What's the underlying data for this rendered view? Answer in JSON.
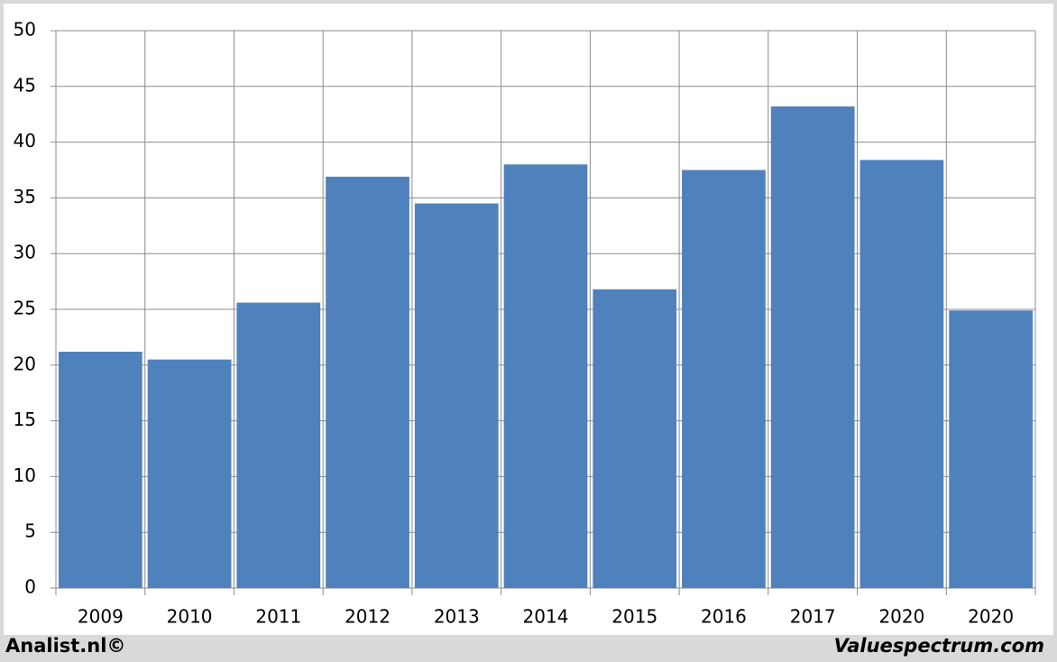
{
  "chart_data": {
    "type": "bar",
    "categories": [
      "2009",
      "2010",
      "2011",
      "2012",
      "2013",
      "2014",
      "2015",
      "2016",
      "2017",
      "2020",
      "2020"
    ],
    "values": [
      21.2,
      20.5,
      25.6,
      36.9,
      34.5,
      38.0,
      26.8,
      37.5,
      43.2,
      38.4,
      24.9
    ],
    "color": "#4f81bd",
    "ylim": [
      0,
      50
    ],
    "yticks": [
      0,
      5,
      10,
      15,
      20,
      25,
      30,
      35,
      40,
      45,
      50
    ],
    "grid": true,
    "annotations": [
      "Analist.nl©",
      "Valuespectrum.com"
    ]
  }
}
